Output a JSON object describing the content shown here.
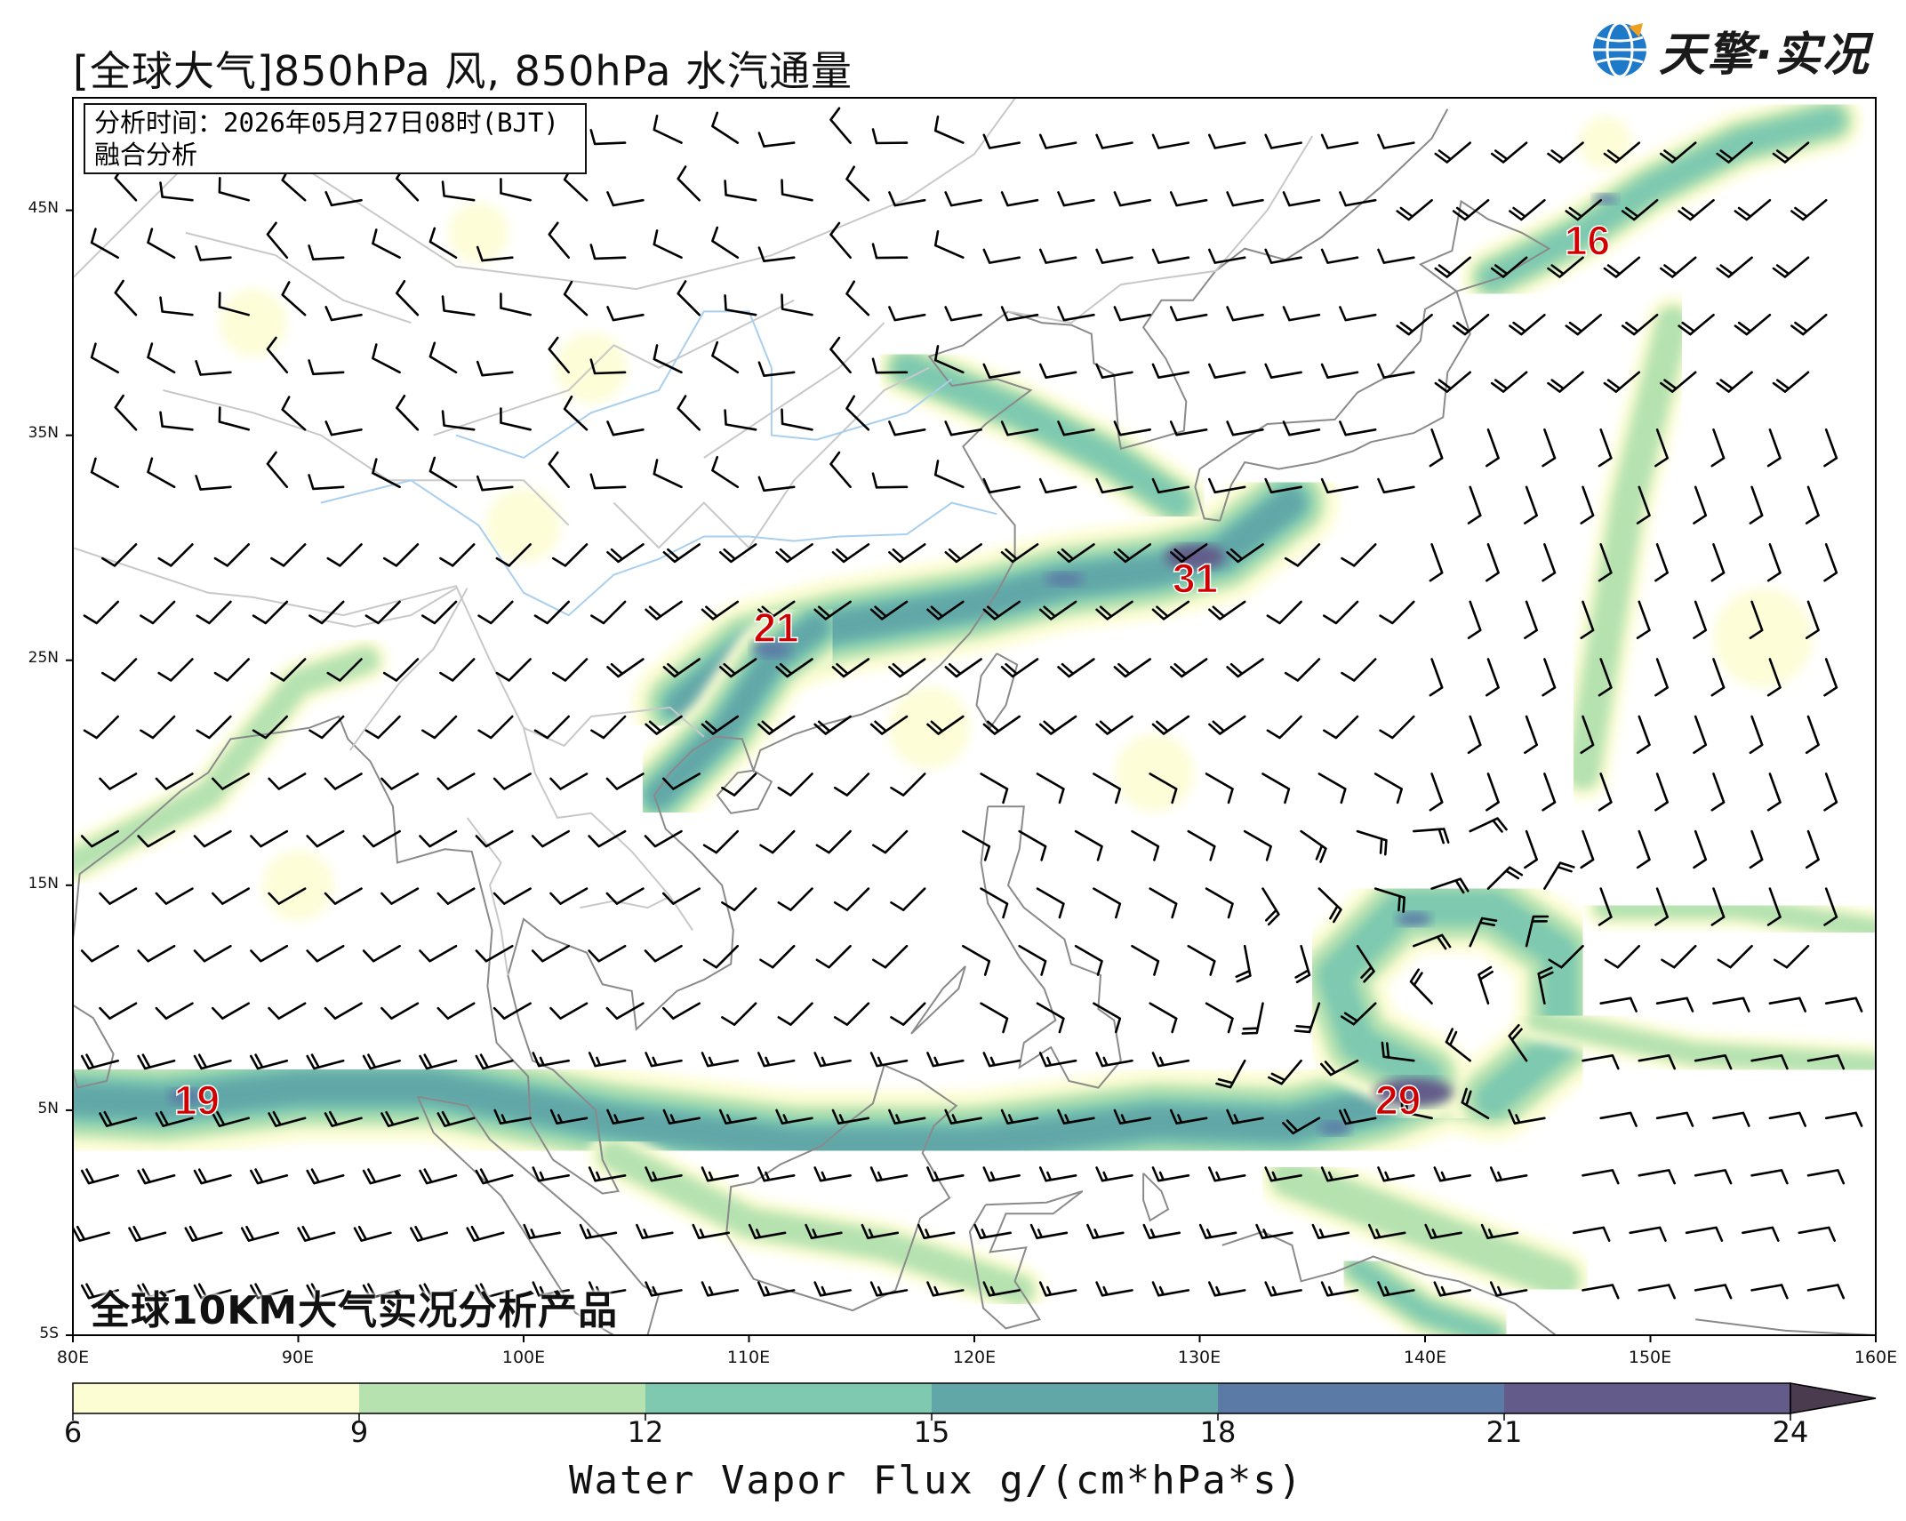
{
  "title": "[全球大气]850hPa 风, 850hPa 水汽通量",
  "logo": {
    "text": "天擎·实况",
    "icon": "globe-logo-icon"
  },
  "info": {
    "line1": "分析时间：2026年05月27日08时(BJT)",
    "line2": "融合分析"
  },
  "product_label": "全球10KM大气实况分析产品",
  "lat_labels": [
    "45N",
    "35N",
    "25N",
    "15N",
    "5N",
    "5S"
  ],
  "lon_labels": [
    "80E",
    "90E",
    "100E",
    "110E",
    "120E",
    "130E",
    "140E",
    "150E",
    "160E"
  ],
  "maxima": [
    {
      "value": "16",
      "lon": 147.2,
      "lat": 43.5
    },
    {
      "value": "31",
      "lon": 129.8,
      "lat": 28.5
    },
    {
      "value": "21",
      "lon": 111.2,
      "lat": 26.3
    },
    {
      "value": "19",
      "lon": 85.5,
      "lat": 5.3
    },
    {
      "value": "29",
      "lon": 138.8,
      "lat": 5.3
    }
  ],
  "colorbar": {
    "ticks": [
      "6",
      "9",
      "12",
      "15",
      "18",
      "21",
      "24"
    ],
    "colors": [
      "#fdfdd4",
      "#b6e2b0",
      "#7ec9b0",
      "#62a7a8",
      "#5b7aa6",
      "#635c8a",
      "#4a3b4e"
    ],
    "title": "Water Vapor Flux g/(cm*hPa*s)"
  },
  "colors": {
    "coast": "#8a8a8a",
    "border": "#c8c8c8",
    "river": "#a9cfee",
    "label": "#d10000"
  }
}
